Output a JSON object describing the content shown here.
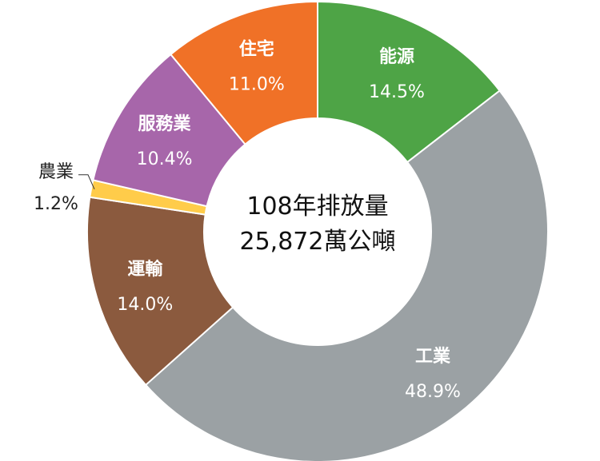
{
  "chart_data": {
    "type": "pie",
    "donut": true,
    "center_label": [
      "108年排放量",
      "25,872萬公噸"
    ],
    "slices": [
      {
        "name": "能源",
        "value": 14.5,
        "label": "14.5%",
        "color": "#4ea446"
      },
      {
        "name": "工業",
        "value": 48.9,
        "label": "48.9%",
        "color": "#9ba1a4"
      },
      {
        "name": "運輸",
        "value": 14.0,
        "label": "14.0%",
        "color": "#8b5a3e"
      },
      {
        "name": "農業",
        "value": 1.2,
        "label": "1.2%",
        "color": "#ffcc4a"
      },
      {
        "name": "服務業",
        "value": 10.4,
        "label": "10.4%",
        "color": "#a766aa"
      },
      {
        "name": "住宅",
        "value": 11.0,
        "label": "11.0%",
        "color": "#f07127"
      }
    ]
  }
}
